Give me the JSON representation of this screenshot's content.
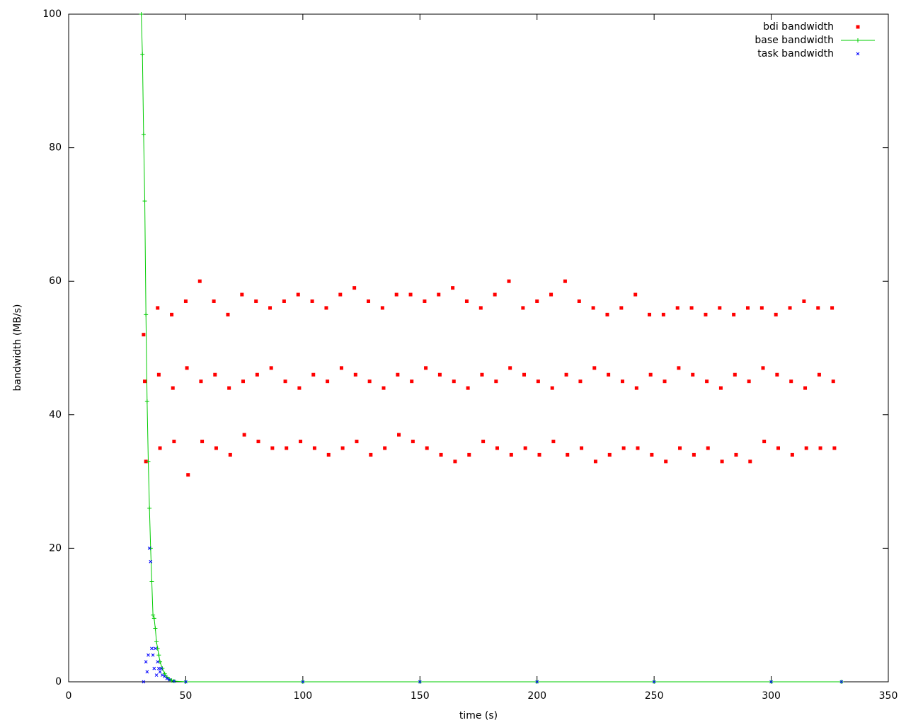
{
  "chart_data": {
    "type": "scatter",
    "xlabel": "time (s)",
    "ylabel": "bandwidth (MB/s)",
    "xlim": [
      0,
      350
    ],
    "xticks": [
      0,
      50,
      100,
      150,
      200,
      250,
      300,
      350
    ],
    "ylim": [
      0,
      100
    ],
    "yticks": [
      0,
      20,
      40,
      60,
      80,
      100
    ],
    "legend": "top-right",
    "series": [
      {
        "name": "bdi bandwidth",
        "color": "#ff0000",
        "marker": "square",
        "line": false,
        "x": [
          32,
          32.5,
          33,
          38,
          38.5,
          39,
          44,
          44.5,
          45,
          50,
          50.5,
          51,
          56,
          56.5,
          57,
          62,
          62.5,
          63,
          68,
          68.5,
          69,
          74,
          74.5,
          75,
          80,
          80.5,
          81,
          86,
          86.5,
          87,
          92,
          92.5,
          93,
          98,
          98.5,
          99,
          104,
          104.5,
          105,
          110,
          110.5,
          111,
          116,
          116.5,
          117,
          122,
          122.5,
          123,
          128,
          128.5,
          129,
          134,
          134.5,
          135,
          140,
          140.5,
          141,
          146,
          146.5,
          147,
          152,
          152.5,
          153,
          158,
          158.5,
          159,
          164,
          164.5,
          165,
          170,
          170.5,
          171,
          176,
          176.5,
          177,
          182,
          182.5,
          183,
          188,
          188.5,
          189,
          194,
          194.5,
          195,
          200,
          200.5,
          201,
          206,
          206.5,
          207,
          212,
          212.5,
          213,
          218,
          218.5,
          219,
          224,
          224.5,
          225,
          230,
          230.5,
          231,
          236,
          236.5,
          237,
          242,
          242.5,
          243,
          248,
          248.5,
          249,
          254,
          254.5,
          255,
          260,
          260.5,
          261,
          266,
          266.5,
          267,
          272,
          272.5,
          273,
          278,
          278.5,
          279,
          284,
          284.5,
          285,
          290,
          290.5,
          291,
          296,
          296.5,
          297,
          302,
          302.5,
          303,
          308,
          308.5,
          309,
          314,
          314.5,
          315,
          320,
          320.5,
          321,
          326,
          326.5,
          327
        ],
        "values": [
          52,
          45,
          33,
          56,
          46,
          35,
          55,
          44,
          36,
          57,
          47,
          31,
          60,
          45,
          36,
          57,
          46,
          35,
          55,
          44,
          34,
          58,
          45,
          37,
          57,
          46,
          36,
          56,
          47,
          35,
          57,
          45,
          35,
          58,
          44,
          36,
          57,
          46,
          35,
          56,
          45,
          34,
          58,
          47,
          35,
          59,
          46,
          36,
          57,
          45,
          34,
          56,
          44,
          35,
          58,
          46,
          37,
          58,
          45,
          36,
          57,
          47,
          35,
          58,
          46,
          34,
          59,
          45,
          33,
          57,
          44,
          34,
          56,
          46,
          36,
          58,
          45,
          35,
          60,
          47,
          34,
          56,
          46,
          35,
          57,
          45,
          34,
          58,
          44,
          36,
          60,
          46,
          34,
          57,
          45,
          35,
          56,
          47,
          33,
          55,
          46,
          34,
          56,
          45,
          35,
          58,
          44,
          35,
          55,
          46,
          34,
          55,
          45,
          33,
          56,
          47,
          35,
          56,
          46,
          34,
          55,
          45,
          35,
          56,
          44,
          33,
          55,
          46,
          34,
          56,
          45,
          33,
          56,
          47,
          36,
          55,
          46,
          35,
          56,
          45,
          34,
          57,
          44,
          35,
          56,
          46,
          35,
          56,
          45,
          35
        ]
      },
      {
        "name": "base bandwidth",
        "color": "#00cc00",
        "marker": "plus",
        "line": true,
        "x": [
          31,
          31.5,
          32,
          32.5,
          33,
          33.5,
          34,
          34.5,
          35,
          35.5,
          36,
          36.5,
          37,
          37.5,
          38,
          38.5,
          39,
          40,
          41,
          42,
          43,
          44,
          45,
          50,
          100,
          150,
          200,
          250,
          300,
          330
        ],
        "values": [
          100,
          94,
          82,
          72,
          55,
          42,
          33,
          26,
          20,
          15,
          10,
          9.5,
          8,
          6,
          5,
          4,
          3,
          2,
          1.2,
          0.7,
          0.4,
          0.2,
          0.1,
          0,
          0,
          0,
          0,
          0,
          0,
          0
        ]
      },
      {
        "name": "task bandwidth",
        "color": "#0000ff",
        "marker": "x",
        "line": false,
        "x": [
          32,
          33,
          33.5,
          34,
          34.5,
          35,
          35.5,
          36,
          36.5,
          37,
          37.5,
          38,
          38.5,
          39,
          39.5,
          40,
          41,
          42,
          43,
          45,
          50,
          100,
          150,
          200,
          250,
          300,
          330
        ],
        "values": [
          0,
          3,
          1.5,
          4,
          20,
          18,
          5,
          4,
          2,
          5,
          1,
          3,
          2,
          1.5,
          2,
          1,
          0.8,
          0.5,
          0.3,
          0.1,
          0,
          0,
          0,
          0,
          0,
          0,
          0
        ]
      }
    ]
  }
}
